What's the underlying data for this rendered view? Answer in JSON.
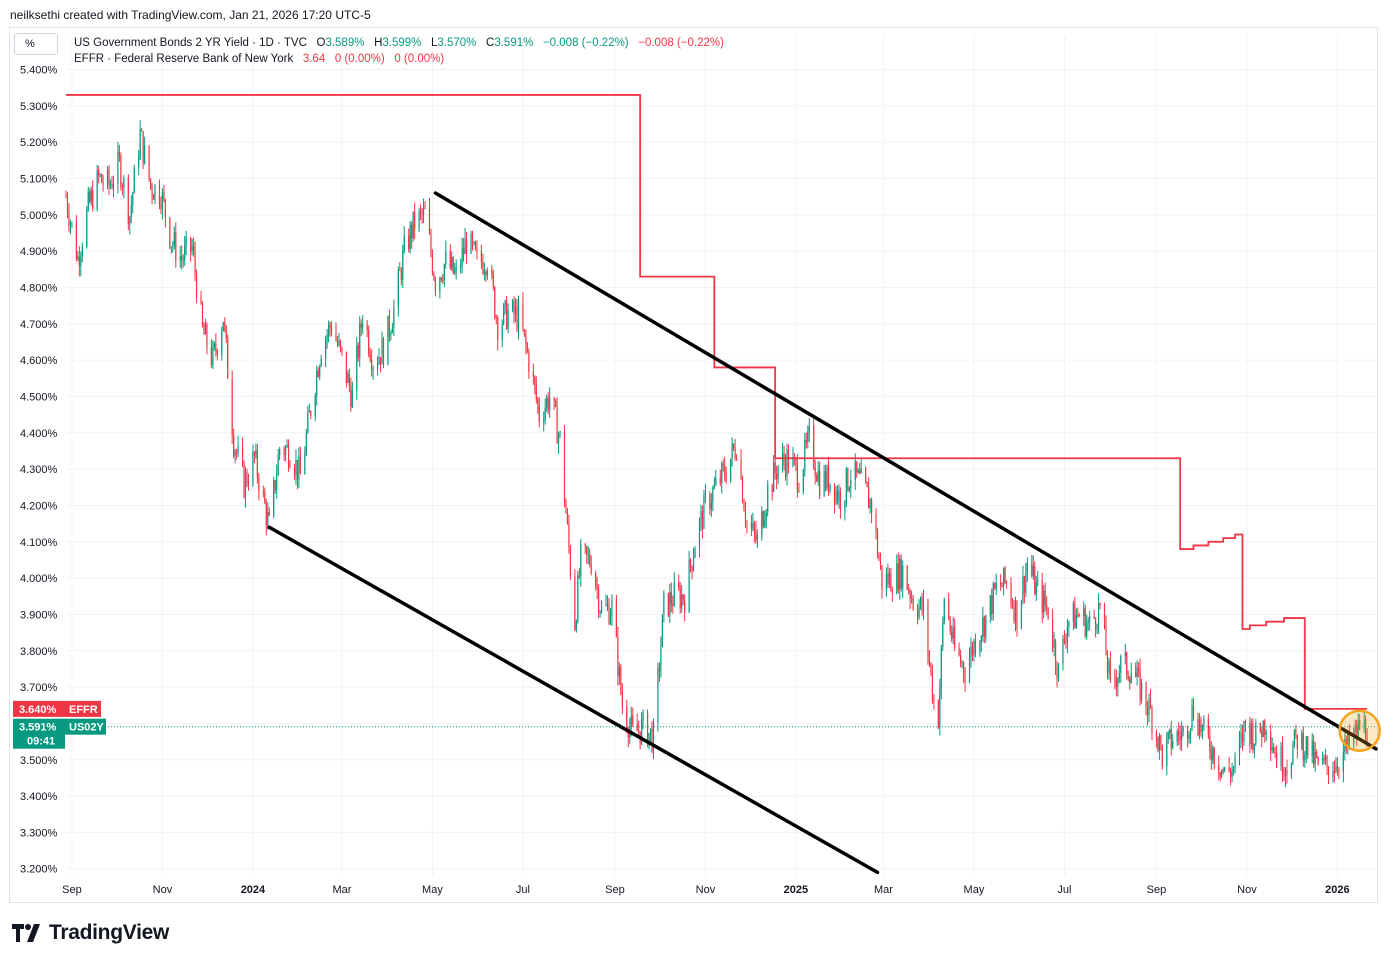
{
  "header": {
    "creator": "neilksethi created with TradingView.com, Jan 21, 2026 17:20 UTC-5",
    "unit": "%"
  },
  "legend": {
    "line1": {
      "name": "US Government Bonds 2 YR Yield · 1D · TVC",
      "o_label": "O",
      "o_value": "3.589%",
      "h_label": "H",
      "h_value": "3.599%",
      "l_label": "L",
      "l_value": "3.570%",
      "c_label": "C",
      "c_value": "3.591%",
      "change": "−0.008 (−0.22%)",
      "change2": "−0.008 (−0.22%)"
    },
    "line2": {
      "name": "EFFR · Federal Reserve Bank of New York",
      "value": "3.64",
      "change": "0 (0.00%)",
      "change2": "0 (0.00%)"
    }
  },
  "badges": {
    "effr_value": "3.640%",
    "effr_label": "EFFR",
    "us02y_value": "3.591%",
    "us02y_label": "US02Y",
    "countdown": "09:41"
  },
  "brand": {
    "name": "TradingView"
  },
  "colors": {
    "up": "#089981",
    "down": "#f23645",
    "effr": "#f23645",
    "trend": "#000000",
    "highlight": "#f7a21b"
  },
  "chart_data": {
    "type": "candlestick",
    "y_ticks": [
      "5.400%",
      "5.300%",
      "5.200%",
      "5.100%",
      "5.000%",
      "4.900%",
      "4.800%",
      "4.700%",
      "4.600%",
      "4.500%",
      "4.400%",
      "4.300%",
      "4.200%",
      "4.100%",
      "4.000%",
      "3.900%",
      "3.800%",
      "3.700%",
      "3.600%",
      "3.500%",
      "3.400%",
      "3.300%",
      "3.200%"
    ],
    "y_tick_values": [
      5.4,
      5.3,
      5.2,
      5.1,
      5.0,
      4.9,
      4.8,
      4.7,
      4.6,
      4.5,
      4.4,
      4.3,
      4.2,
      4.1,
      4.0,
      3.9,
      3.8,
      3.7,
      3.6,
      3.5,
      3.4,
      3.3,
      3.2
    ],
    "ylim": [
      3.18,
      5.44
    ],
    "x_ticks": [
      {
        "label": "Sep",
        "date": "2023-09-01",
        "bold": false
      },
      {
        "label": "Nov",
        "date": "2023-11-01",
        "bold": false
      },
      {
        "label": "2024",
        "date": "2024-01-01",
        "bold": true
      },
      {
        "label": "Mar",
        "date": "2024-03-01",
        "bold": false
      },
      {
        "label": "May",
        "date": "2024-05-01",
        "bold": false
      },
      {
        "label": "Jul",
        "date": "2024-07-01",
        "bold": false
      },
      {
        "label": "Sep",
        "date": "2024-09-01",
        "bold": false
      },
      {
        "label": "Nov",
        "date": "2024-11-01",
        "bold": false
      },
      {
        "label": "2025",
        "date": "2025-01-01",
        "bold": true
      },
      {
        "label": "Mar",
        "date": "2025-03-01",
        "bold": false
      },
      {
        "label": "May",
        "date": "2025-05-01",
        "bold": false
      },
      {
        "label": "Jul",
        "date": "2025-07-01",
        "bold": false
      },
      {
        "label": "Sep",
        "date": "2025-09-01",
        "bold": false
      },
      {
        "label": "Nov",
        "date": "2025-11-01",
        "bold": false
      },
      {
        "label": "2026",
        "date": "2026-01-01",
        "bold": true
      }
    ],
    "xlim": [
      "2023-08-28",
      "2026-01-27"
    ],
    "series": [
      {
        "name": "US02Y",
        "kind": "close-path",
        "points": [
          [
            "2023-08-28",
            5.05
          ],
          [
            "2023-09-05",
            4.88
          ],
          [
            "2023-09-12",
            5.02
          ],
          [
            "2023-09-19",
            5.1
          ],
          [
            "2023-09-26",
            5.08
          ],
          [
            "2023-10-03",
            5.14
          ],
          [
            "2023-10-10",
            5.0
          ],
          [
            "2023-10-17",
            5.22
          ],
          [
            "2023-10-24",
            5.08
          ],
          [
            "2023-10-31",
            5.06
          ],
          [
            "2023-11-07",
            4.93
          ],
          [
            "2023-11-14",
            4.88
          ],
          [
            "2023-11-21",
            4.91
          ],
          [
            "2023-11-28",
            4.68
          ],
          [
            "2023-12-05",
            4.6
          ],
          [
            "2023-12-12",
            4.72
          ],
          [
            "2023-12-19",
            4.38
          ],
          [
            "2023-12-26",
            4.26
          ],
          [
            "2024-01-02",
            4.33
          ],
          [
            "2024-01-12",
            4.14
          ],
          [
            "2024-01-19",
            4.36
          ],
          [
            "2024-01-26",
            4.35
          ],
          [
            "2024-02-02",
            4.28
          ],
          [
            "2024-02-09",
            4.47
          ],
          [
            "2024-02-16",
            4.64
          ],
          [
            "2024-02-23",
            4.7
          ],
          [
            "2024-03-01",
            4.6
          ],
          [
            "2024-03-08",
            4.5
          ],
          [
            "2024-03-15",
            4.73
          ],
          [
            "2024-03-22",
            4.6
          ],
          [
            "2024-03-29",
            4.63
          ],
          [
            "2024-04-05",
            4.74
          ],
          [
            "2024-04-12",
            4.9
          ],
          [
            "2024-04-19",
            4.98
          ],
          [
            "2024-04-26",
            5.0
          ],
          [
            "2024-05-03",
            4.82
          ],
          [
            "2024-05-10",
            4.87
          ],
          [
            "2024-05-17",
            4.83
          ],
          [
            "2024-05-24",
            4.93
          ],
          [
            "2024-05-31",
            4.87
          ],
          [
            "2024-06-07",
            4.88
          ],
          [
            "2024-06-14",
            4.7
          ],
          [
            "2024-06-21",
            4.73
          ],
          [
            "2024-06-28",
            4.72
          ],
          [
            "2024-07-05",
            4.6
          ],
          [
            "2024-07-12",
            4.45
          ],
          [
            "2024-07-19",
            4.5
          ],
          [
            "2024-07-26",
            4.38
          ],
          [
            "2024-08-05",
            3.88
          ],
          [
            "2024-08-09",
            4.05
          ],
          [
            "2024-08-16",
            4.05
          ],
          [
            "2024-08-23",
            3.91
          ],
          [
            "2024-08-30",
            3.92
          ],
          [
            "2024-09-06",
            3.65
          ],
          [
            "2024-09-13",
            3.57
          ],
          [
            "2024-09-20",
            3.59
          ],
          [
            "2024-09-27",
            3.56
          ],
          [
            "2024-10-04",
            3.92
          ],
          [
            "2024-10-11",
            3.95
          ],
          [
            "2024-10-18",
            3.95
          ],
          [
            "2024-10-25",
            4.1
          ],
          [
            "2024-11-01",
            4.2
          ],
          [
            "2024-11-08",
            4.25
          ],
          [
            "2024-11-15",
            4.3
          ],
          [
            "2024-11-22",
            4.37
          ],
          [
            "2024-11-29",
            4.15
          ],
          [
            "2024-12-06",
            4.1
          ],
          [
            "2024-12-13",
            4.24
          ],
          [
            "2024-12-20",
            4.31
          ],
          [
            "2024-12-27",
            4.33
          ],
          [
            "2025-01-03",
            4.28
          ],
          [
            "2025-01-10",
            4.38
          ],
          [
            "2025-01-17",
            4.27
          ],
          [
            "2025-01-24",
            4.27
          ],
          [
            "2025-01-31",
            4.22
          ],
          [
            "2025-02-07",
            4.29
          ],
          [
            "2025-02-14",
            4.26
          ],
          [
            "2025-02-21",
            4.2
          ],
          [
            "2025-02-28",
            3.99
          ],
          [
            "2025-03-07",
            4.0
          ],
          [
            "2025-03-14",
            4.02
          ],
          [
            "2025-03-21",
            3.94
          ],
          [
            "2025-03-28",
            3.91
          ],
          [
            "2025-04-04",
            3.66
          ],
          [
            "2025-04-07",
            3.62
          ],
          [
            "2025-04-11",
            3.95
          ],
          [
            "2025-04-18",
            3.8
          ],
          [
            "2025-04-25",
            3.75
          ],
          [
            "2025-05-02",
            3.83
          ],
          [
            "2025-05-09",
            3.89
          ],
          [
            "2025-05-16",
            3.97
          ],
          [
            "2025-05-23",
            3.99
          ],
          [
            "2025-05-30",
            3.9
          ],
          [
            "2025-06-06",
            4.04
          ],
          [
            "2025-06-13",
            3.96
          ],
          [
            "2025-06-20",
            3.91
          ],
          [
            "2025-06-27",
            3.74
          ],
          [
            "2025-07-03",
            3.88
          ],
          [
            "2025-07-11",
            3.9
          ],
          [
            "2025-07-18",
            3.87
          ],
          [
            "2025-07-25",
            3.92
          ],
          [
            "2025-08-01",
            3.7
          ],
          [
            "2025-08-08",
            3.76
          ],
          [
            "2025-08-15",
            3.75
          ],
          [
            "2025-08-22",
            3.69
          ],
          [
            "2025-08-29",
            3.62
          ],
          [
            "2025-09-05",
            3.51
          ],
          [
            "2025-09-12",
            3.56
          ],
          [
            "2025-09-19",
            3.57
          ],
          [
            "2025-09-26",
            3.64
          ],
          [
            "2025-10-03",
            3.57
          ],
          [
            "2025-10-10",
            3.52
          ],
          [
            "2025-10-17",
            3.46
          ],
          [
            "2025-10-24",
            3.48
          ],
          [
            "2025-10-31",
            3.6
          ],
          [
            "2025-11-07",
            3.56
          ],
          [
            "2025-11-14",
            3.61
          ],
          [
            "2025-11-21",
            3.51
          ],
          [
            "2025-11-28",
            3.49
          ],
          [
            "2025-12-05",
            3.56
          ],
          [
            "2025-12-12",
            3.53
          ],
          [
            "2025-12-19",
            3.48
          ],
          [
            "2025-12-26",
            3.48
          ],
          [
            "2026-01-02",
            3.5
          ],
          [
            "2026-01-09",
            3.54
          ],
          [
            "2026-01-16",
            3.59
          ],
          [
            "2026-01-21",
            3.591
          ]
        ]
      },
      {
        "name": "EFFR",
        "kind": "step",
        "points": [
          [
            "2023-08-28",
            5.33
          ],
          [
            "2024-09-18",
            4.83
          ],
          [
            "2024-11-07",
            4.58
          ],
          [
            "2024-12-18",
            4.33
          ],
          [
            "2025-09-17",
            4.08
          ],
          [
            "2025-09-26",
            4.09
          ],
          [
            "2025-10-06",
            4.1
          ],
          [
            "2025-10-16",
            4.11
          ],
          [
            "2025-10-24",
            4.12
          ],
          [
            "2025-10-29",
            3.86
          ],
          [
            "2025-11-03",
            3.87
          ],
          [
            "2025-11-14",
            3.88
          ],
          [
            "2025-11-26",
            3.89
          ],
          [
            "2025-12-10",
            3.64
          ],
          [
            "2026-01-21",
            3.64
          ]
        ]
      }
    ],
    "trendlines": [
      {
        "name": "upper-channel",
        "from": [
          "2024-05-03",
          5.06
        ],
        "to": [
          "2026-01-27",
          3.53
        ]
      },
      {
        "name": "lower-channel",
        "from": [
          "2024-01-12",
          4.14
        ],
        "to": [
          "2025-02-25",
          3.19
        ]
      }
    ],
    "current_price_line": 3.591,
    "highlight": {
      "date": "2026-01-16",
      "value": 3.58
    },
    "grid": true
  }
}
